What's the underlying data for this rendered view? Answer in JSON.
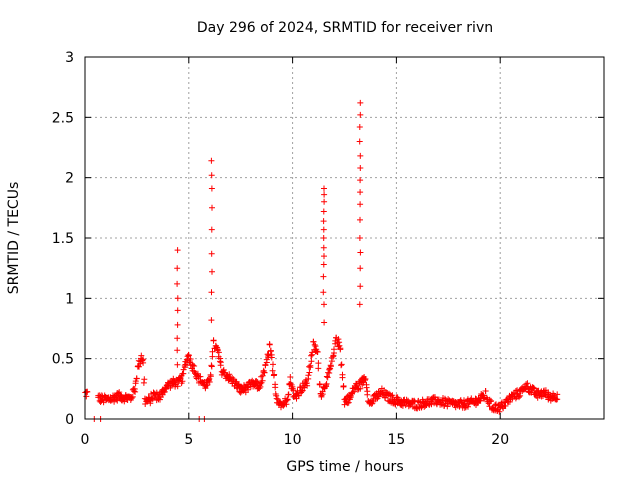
{
  "chart_data": {
    "type": "scatter",
    "title": "Day 296 of 2024, SRMTID for receiver rivn",
    "xlabel": "GPS time / hours",
    "ylabel": "SRMTID / TECUs",
    "xlim": [
      0,
      25
    ],
    "ylim": [
      0,
      3
    ],
    "xticks": [
      0,
      5,
      10,
      15,
      20
    ],
    "xtick_labels": [
      "0",
      "5",
      "10",
      "15",
      "20"
    ],
    "yticks": [
      0,
      0.5,
      1,
      1.5,
      2,
      2.5,
      3
    ],
    "ytick_labels": [
      "0",
      "0.5",
      "1",
      "1.5",
      "2",
      "2.5",
      "3"
    ],
    "grid": true,
    "marker": "+",
    "series": [
      {
        "name": "SRMTID",
        "color": "#ff0000",
        "x_step": 0.05,
        "baseline": [
          [
            0.0,
            0.21
          ],
          [
            0.1,
            0.21
          ],
          [
            0.7,
            0.17
          ],
          [
            1.0,
            0.16
          ],
          [
            1.3,
            0.17
          ],
          [
            1.6,
            0.19
          ],
          [
            1.9,
            0.18
          ],
          [
            2.2,
            0.17
          ],
          [
            2.4,
            0.25
          ],
          [
            2.55,
            0.42
          ],
          [
            2.7,
            0.52
          ],
          [
            2.8,
            0.48
          ],
          [
            2.9,
            0.15
          ],
          [
            3.1,
            0.15
          ],
          [
            3.3,
            0.2
          ],
          [
            3.6,
            0.18
          ],
          [
            3.9,
            0.27
          ],
          [
            4.2,
            0.3
          ],
          [
            4.5,
            0.3
          ],
          [
            4.7,
            0.34
          ],
          [
            4.9,
            0.5
          ],
          [
            5.0,
            0.52
          ],
          [
            5.15,
            0.45
          ],
          [
            5.3,
            0.4
          ],
          [
            5.5,
            0.33
          ],
          [
            5.8,
            0.28
          ],
          [
            6.0,
            0.3
          ],
          [
            6.2,
            0.62
          ],
          [
            6.4,
            0.56
          ],
          [
            6.6,
            0.4
          ],
          [
            6.9,
            0.35
          ],
          [
            7.2,
            0.3
          ],
          [
            7.5,
            0.24
          ],
          [
            7.8,
            0.26
          ],
          [
            8.1,
            0.29
          ],
          [
            8.4,
            0.27
          ],
          [
            8.7,
            0.42
          ],
          [
            8.9,
            0.6
          ],
          [
            9.0,
            0.5
          ],
          [
            9.2,
            0.18
          ],
          [
            9.5,
            0.12
          ],
          [
            9.7,
            0.15
          ],
          [
            9.9,
            0.32
          ],
          [
            10.1,
            0.18
          ],
          [
            10.4,
            0.25
          ],
          [
            10.7,
            0.3
          ],
          [
            10.9,
            0.5
          ],
          [
            11.0,
            0.61
          ],
          [
            11.2,
            0.55
          ],
          [
            11.35,
            0.2
          ],
          [
            11.5,
            0.25
          ],
          [
            11.8,
            0.4
          ],
          [
            12.0,
            0.55
          ],
          [
            12.1,
            0.68
          ],
          [
            12.3,
            0.58
          ],
          [
            12.5,
            0.15
          ],
          [
            12.8,
            0.18
          ],
          [
            13.0,
            0.27
          ],
          [
            13.2,
            0.27
          ],
          [
            13.5,
            0.35
          ],
          [
            13.7,
            0.12
          ],
          [
            14.0,
            0.18
          ],
          [
            14.3,
            0.22
          ],
          [
            14.6,
            0.18
          ],
          [
            15.0,
            0.15
          ],
          [
            15.5,
            0.13
          ],
          [
            16.0,
            0.12
          ],
          [
            16.5,
            0.14
          ],
          [
            17.0,
            0.15
          ],
          [
            17.5,
            0.13
          ],
          [
            18.0,
            0.12
          ],
          [
            18.5,
            0.13
          ],
          [
            19.0,
            0.16
          ],
          [
            19.3,
            0.2
          ],
          [
            19.6,
            0.1
          ],
          [
            20.0,
            0.09
          ],
          [
            20.3,
            0.14
          ],
          [
            20.6,
            0.19
          ],
          [
            21.0,
            0.22
          ],
          [
            21.2,
            0.28
          ],
          [
            21.5,
            0.24
          ],
          [
            21.8,
            0.2
          ],
          [
            22.1,
            0.22
          ],
          [
            22.4,
            0.18
          ],
          [
            22.8,
            0.2
          ]
        ],
        "gaps": [
          [
            0.15,
            0.65
          ]
        ],
        "spikes": [
          {
            "x": 4.45,
            "y": [
              0.45,
              0.57,
              0.67,
              0.78,
              0.9,
              1.0,
              1.12,
              1.25,
              1.4
            ]
          },
          {
            "x": 6.1,
            "y": [
              0.82,
              1.05,
              1.22,
              1.37,
              1.57,
              1.75,
              1.91,
              2.02,
              2.14
            ]
          },
          {
            "x": 11.5,
            "y": [
              0.8,
              0.95,
              1.05,
              1.18,
              1.28,
              1.35,
              1.42,
              1.5,
              1.57,
              1.64,
              1.72,
              1.8,
              1.86,
              1.91
            ]
          },
          {
            "x": 13.25,
            "y": [
              0.95,
              1.1,
              1.25,
              1.38,
              1.5,
              1.65,
              1.78,
              1.88,
              1.98,
              2.08,
              2.18,
              2.3,
              2.42,
              2.52,
              2.62
            ]
          }
        ],
        "near_zero_points": [
          [
            0.45,
            0.0
          ],
          [
            0.75,
            0.0
          ],
          [
            5.5,
            0.0
          ],
          [
            5.75,
            0.0
          ]
        ]
      }
    ]
  }
}
